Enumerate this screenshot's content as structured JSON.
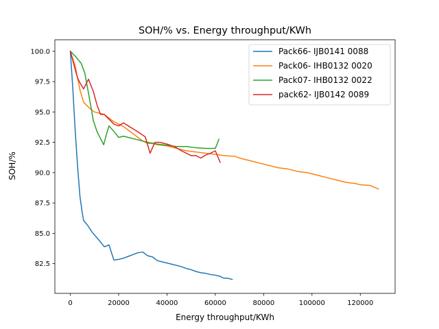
{
  "chart_data": {
    "type": "line",
    "title": "SOH/% vs. Energy throughput/KWh",
    "xlabel": "Energy throughput/KWh",
    "ylabel": "SOH/%",
    "xlim": [
      -6400,
      134400
    ],
    "ylim": [
      80.05,
      100.95
    ],
    "xticks": [
      0,
      20000,
      40000,
      60000,
      80000,
      100000,
      120000
    ],
    "xtick_labels": [
      "0",
      "20000",
      "40000",
      "60000",
      "80000",
      "100000",
      "120000"
    ],
    "yticks": [
      82.5,
      85.0,
      87.5,
      90.0,
      92.5,
      95.0,
      97.5,
      100.0
    ],
    "ytick_labels": [
      "82.5",
      "85.0",
      "87.5",
      "90.0",
      "92.5",
      "95.0",
      "97.5",
      "100.0"
    ],
    "grid": false,
    "legend_position": "top-right",
    "series": [
      {
        "name": "Pack66- IJB0141 0088",
        "color": "#1f77b4",
        "x": [
          0,
          1000,
          2000,
          3000,
          4000,
          5000,
          5500,
          7000,
          9000,
          12000,
          14000,
          15000,
          16000,
          18000,
          20000,
          22000,
          24000,
          26000,
          28000,
          30000,
          32000,
          34000,
          36000,
          38000,
          40000,
          42000,
          44000,
          46000,
          48000,
          50000,
          52000,
          54000,
          56000,
          58000,
          60000,
          62000,
          63500,
          65000,
          67000
        ],
        "y": [
          100.0,
          97.0,
          93.5,
          90.5,
          88.0,
          86.6,
          86.05,
          85.7,
          85.1,
          84.4,
          83.9,
          83.95,
          84.05,
          82.8,
          82.85,
          82.95,
          83.1,
          83.25,
          83.4,
          83.45,
          83.15,
          83.05,
          82.75,
          82.65,
          82.55,
          82.45,
          82.35,
          82.25,
          82.1,
          82.0,
          81.85,
          81.75,
          81.7,
          81.6,
          81.55,
          81.45,
          81.3,
          81.3,
          81.2
        ]
      },
      {
        "name": "Pack06- IHB0132 0020",
        "color": "#ff7f0e",
        "x": [
          0,
          2000,
          4000,
          5500,
          8000,
          10000,
          12000,
          14000,
          16000,
          18000,
          20000,
          22000,
          24000,
          26000,
          28000,
          30000,
          32000,
          34000,
          36000,
          40000,
          44000,
          48000,
          52000,
          56000,
          60000,
          64000,
          68000,
          70000,
          74000,
          78000,
          82000,
          86000,
          90000,
          94000,
          98000,
          102000,
          106000,
          110000,
          114000,
          118000,
          120000,
          124000,
          127500
        ],
        "y": [
          100.0,
          98.8,
          96.8,
          95.8,
          95.3,
          95.0,
          94.9,
          94.8,
          94.5,
          94.2,
          94.0,
          93.8,
          93.5,
          93.2,
          92.9,
          92.6,
          92.4,
          92.4,
          92.3,
          92.2,
          92.0,
          91.8,
          91.7,
          91.6,
          91.5,
          91.4,
          91.35,
          91.2,
          91.0,
          90.8,
          90.6,
          90.4,
          90.3,
          90.1,
          90.0,
          89.8,
          89.6,
          89.4,
          89.2,
          89.1,
          89.0,
          88.95,
          88.65
        ]
      },
      {
        "name": "Pack07- IHB0132 0022",
        "color": "#2ca02c",
        "x": [
          0,
          2000,
          4500,
          6000,
          8000,
          9500,
          11000,
          12500,
          13800,
          15000,
          16000,
          18000,
          20000,
          22000,
          24000,
          28000,
          32000,
          36000,
          40000,
          44000,
          48000,
          52000,
          56000,
          60000,
          61500
        ],
        "y": [
          100.0,
          99.6,
          99.0,
          98.2,
          96.0,
          94.3,
          93.4,
          92.8,
          92.3,
          93.2,
          93.85,
          93.4,
          92.9,
          93.0,
          92.9,
          92.7,
          92.5,
          92.35,
          92.25,
          92.15,
          92.15,
          92.05,
          92.0,
          92.0,
          92.75
        ]
      },
      {
        "name": "pack62- IJB0142 0089",
        "color": "#d62728",
        "x": [
          0,
          2000,
          3000,
          4000,
          5500,
          7500,
          9500,
          11000,
          12500,
          14000,
          16000,
          18000,
          20000,
          22000,
          24000,
          26000,
          28000,
          31000,
          33000,
          35000,
          37000,
          40000,
          43000,
          46000,
          48000,
          50000,
          52000,
          54000,
          56000,
          58000,
          60000,
          62000
        ],
        "y": [
          100.0,
          98.5,
          97.8,
          97.4,
          96.9,
          97.7,
          96.7,
          95.6,
          94.8,
          94.8,
          94.4,
          94.0,
          93.85,
          94.1,
          93.85,
          93.6,
          93.35,
          92.95,
          91.6,
          92.5,
          92.5,
          92.35,
          92.15,
          91.8,
          91.6,
          91.4,
          91.4,
          91.2,
          91.45,
          91.6,
          91.8,
          90.85
        ]
      }
    ]
  }
}
